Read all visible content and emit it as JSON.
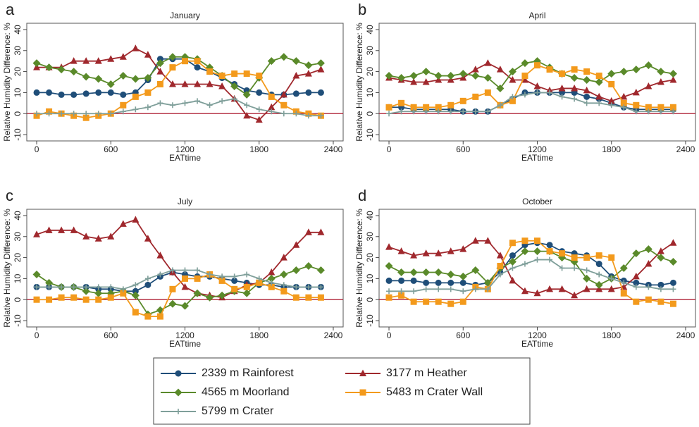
{
  "chart_data": [
    {
      "type": "line",
      "panel_label": "a",
      "title": "January",
      "xlabel": "EATtime",
      "ylabel": "Relative Humidity Difference: %",
      "x": [
        0,
        100,
        200,
        300,
        400,
        500,
        600,
        700,
        800,
        900,
        1000,
        1100,
        1200,
        1300,
        1400,
        1500,
        1600,
        1700,
        1800,
        1900,
        2000,
        2100,
        2200,
        2300
      ],
      "xlim": [
        -80,
        2480
      ],
      "xticks": [
        0,
        600,
        1200,
        1800,
        2400
      ],
      "ylim": [
        -13,
        43
      ],
      "yticks": [
        -10,
        0,
        10,
        20,
        30,
        40
      ],
      "hline": 0,
      "series": [
        {
          "name": "2339 m Rainforest",
          "color": "#1f4e79",
          "marker": "circle",
          "values": [
            10,
            10,
            9,
            9,
            9.5,
            10,
            10,
            9,
            10,
            16,
            26,
            26,
            26,
            22,
            20,
            17,
            14,
            11,
            10,
            9,
            9,
            9.5,
            10,
            10
          ]
        },
        {
          "name": "3177 m Heather",
          "color": "#a0282d",
          "marker": "triangle",
          "values": [
            22,
            22,
            22,
            25,
            25,
            25,
            26,
            27,
            31,
            28,
            20,
            14,
            14,
            14,
            14,
            13,
            7,
            -1,
            -3,
            3,
            9,
            18,
            19,
            21
          ]
        },
        {
          "name": "4565 m Moorland",
          "color": "#5a8a2a",
          "marker": "diamond",
          "values": [
            24,
            22,
            21,
            20,
            17.5,
            16.5,
            14,
            18,
            16.5,
            17,
            24,
            27,
            27,
            26,
            22,
            18,
            13,
            9,
            17,
            25,
            27,
            25,
            23,
            24
          ]
        },
        {
          "name": "5483 m Crater Wall",
          "color": "#f39a1c",
          "marker": "square",
          "values": [
            -1,
            1,
            0,
            -1,
            -2,
            -1,
            0,
            4,
            8,
            10,
            14,
            22,
            25,
            25,
            20,
            18,
            19,
            19,
            18,
            8,
            4,
            1,
            0,
            -1
          ]
        },
        {
          "name": "5799 m Crater",
          "color": "#7f9f9a",
          "marker": "plus",
          "values": [
            0,
            0,
            0,
            0,
            0,
            0,
            0,
            1,
            2,
            3,
            5,
            4,
            5,
            6,
            4,
            6,
            7,
            4,
            2,
            1,
            0,
            0,
            -1,
            -1
          ]
        }
      ]
    },
    {
      "type": "line",
      "panel_label": "b",
      "title": "April",
      "xlabel": "EATtime",
      "ylabel": "Relative Humidity Difference: %",
      "x": [
        0,
        100,
        200,
        300,
        400,
        500,
        600,
        700,
        800,
        900,
        1000,
        1100,
        1200,
        1300,
        1400,
        1500,
        1600,
        1700,
        1800,
        1900,
        2000,
        2100,
        2200,
        2300
      ],
      "xlim": [
        -80,
        2480
      ],
      "xticks": [
        0,
        600,
        1200,
        1800,
        2400
      ],
      "ylim": [
        -13,
        43
      ],
      "yticks": [
        -10,
        0,
        10,
        20,
        30,
        40
      ],
      "hline": 0,
      "series": [
        {
          "name": "2339 m Rainforest",
          "color": "#1f4e79",
          "marker": "circle",
          "values": [
            3,
            3,
            2,
            2,
            2,
            2,
            1,
            1,
            1,
            4,
            7,
            10,
            10,
            10,
            10,
            10,
            8,
            7,
            5,
            3,
            2,
            2,
            2,
            2
          ]
        },
        {
          "name": "3177 m Heather",
          "color": "#a0282d",
          "marker": "triangle",
          "values": [
            17,
            16,
            15,
            15,
            16,
            16,
            17,
            21,
            24,
            21,
            16,
            16,
            13,
            11,
            12,
            12,
            11,
            8,
            6,
            8,
            10,
            13,
            15,
            16
          ]
        },
        {
          "name": "4565 m Moorland",
          "color": "#5a8a2a",
          "marker": "diamond",
          "values": [
            18,
            17,
            18,
            20,
            18,
            18,
            19,
            18,
            17,
            12,
            20,
            24,
            25,
            22,
            19,
            17,
            16,
            15,
            19,
            20,
            21,
            23,
            20,
            19
          ]
        },
        {
          "name": "5483 m Crater Wall",
          "color": "#f39a1c",
          "marker": "square",
          "values": [
            3,
            5,
            3,
            3,
            3,
            4,
            6,
            8,
            10,
            4,
            6,
            18,
            23,
            21,
            19,
            21,
            20,
            18,
            14,
            5,
            4,
            3,
            3,
            3
          ]
        },
        {
          "name": "5799 m Crater",
          "color": "#7f9f9a",
          "marker": "plus",
          "values": [
            0,
            1,
            1,
            1,
            1,
            1,
            1,
            1,
            1,
            4,
            8,
            9,
            10,
            10,
            8,
            7,
            5,
            5,
            4,
            3,
            1,
            1,
            1,
            1
          ]
        }
      ]
    },
    {
      "type": "line",
      "panel_label": "c",
      "title": "July",
      "xlabel": "EATtime",
      "ylabel": "Relative Humidity Difference: %",
      "x": [
        0,
        100,
        200,
        300,
        400,
        500,
        600,
        700,
        800,
        900,
        1000,
        1100,
        1200,
        1300,
        1400,
        1500,
        1600,
        1700,
        1800,
        1900,
        2000,
        2100,
        2200,
        2300
      ],
      "xlim": [
        -80,
        2480
      ],
      "xticks": [
        0,
        600,
        1200,
        1800,
        2400
      ],
      "ylim": [
        -13,
        43
      ],
      "yticks": [
        -10,
        0,
        10,
        20,
        30,
        40
      ],
      "hline": 0,
      "series": [
        {
          "name": "2339 m Rainforest",
          "color": "#1f4e79",
          "marker": "circle",
          "values": [
            6,
            6,
            6,
            6,
            6,
            5,
            5,
            4,
            4,
            7,
            11,
            13,
            12,
            11,
            11,
            10,
            9,
            8,
            7,
            7,
            6,
            6,
            6,
            6
          ]
        },
        {
          "name": "3177 m Heather",
          "color": "#a0282d",
          "marker": "triangle",
          "values": [
            31,
            33,
            33,
            33,
            30,
            29,
            30,
            36,
            38,
            29,
            21,
            13,
            6,
            3,
            2,
            1,
            4,
            7,
            8,
            13,
            20,
            26,
            32,
            32
          ]
        },
        {
          "name": "4565 m Moorland",
          "color": "#5a8a2a",
          "marker": "diamond",
          "values": [
            12,
            8,
            6,
            6,
            4,
            3,
            3,
            4,
            2,
            -7,
            -5,
            -2,
            -3,
            3,
            1,
            2,
            4,
            3,
            8,
            10,
            12,
            14,
            16,
            14
          ]
        },
        {
          "name": "5483 m Crater Wall",
          "color": "#f39a1c",
          "marker": "square",
          "values": [
            0,
            0,
            1,
            1,
            0,
            0,
            1,
            3,
            -6,
            -8,
            -8,
            5,
            10,
            10,
            12,
            9,
            5,
            6,
            8,
            6,
            4,
            1,
            1,
            1
          ]
        },
        {
          "name": "5799 m Crater",
          "color": "#7f9f9a",
          "marker": "plus",
          "values": [
            6,
            6,
            6,
            6,
            6,
            6,
            6,
            5,
            7,
            10,
            12,
            14,
            14,
            14,
            12,
            11,
            11,
            12,
            10,
            8,
            7,
            6,
            6,
            6
          ]
        }
      ]
    },
    {
      "type": "line",
      "panel_label": "d",
      "title": "October",
      "xlabel": "EATtime",
      "ylabel": "Relative Humidity Difference: %",
      "x": [
        0,
        100,
        200,
        300,
        400,
        500,
        600,
        700,
        800,
        900,
        1000,
        1100,
        1200,
        1300,
        1400,
        1500,
        1600,
        1700,
        1800,
        1900,
        2000,
        2100,
        2200,
        2300
      ],
      "xlim": [
        -80,
        2480
      ],
      "xticks": [
        0,
        600,
        1200,
        1800,
        2400
      ],
      "ylim": [
        -13,
        43
      ],
      "yticks": [
        -10,
        0,
        10,
        20,
        30,
        40
      ],
      "hline": 0,
      "series": [
        {
          "name": "2339 m Rainforest",
          "color": "#1f4e79",
          "marker": "circle",
          "values": [
            9,
            9,
            9,
            8,
            8,
            8,
            8,
            7,
            8,
            13,
            21,
            26,
            27,
            26,
            23,
            22,
            21,
            17,
            11,
            9,
            8,
            7,
            7,
            8
          ]
        },
        {
          "name": "3177 m Heather",
          "color": "#a0282d",
          "marker": "triangle",
          "values": [
            25,
            23,
            21,
            22,
            22,
            23,
            24,
            28,
            28,
            21,
            9,
            4,
            3,
            5,
            5,
            2,
            5,
            5,
            5,
            6,
            11,
            17,
            23,
            27
          ]
        },
        {
          "name": "4565 m Moorland",
          "color": "#5a8a2a",
          "marker": "diamond",
          "values": [
            16,
            13,
            13,
            13,
            13,
            12,
            11,
            14,
            8,
            15,
            18,
            23,
            23,
            23,
            20,
            18,
            10,
            7,
            10,
            15,
            22,
            24,
            20,
            18
          ]
        },
        {
          "name": "5483 m Crater Wall",
          "color": "#f39a1c",
          "marker": "square",
          "values": [
            1,
            2,
            -1,
            -1,
            -1,
            -2,
            -1,
            6,
            5,
            16,
            27,
            28,
            28,
            23,
            22,
            20,
            20,
            21,
            20,
            3,
            -1,
            0,
            -1,
            -2
          ]
        },
        {
          "name": "5799 m Crater",
          "color": "#7f9f9a",
          "marker": "plus",
          "values": [
            4,
            4,
            4,
            5,
            5,
            5,
            4,
            5,
            5,
            12,
            15,
            17,
            19,
            19,
            15,
            15,
            14,
            12,
            10,
            8,
            6,
            6,
            5,
            5
          ]
        }
      ]
    }
  ]
}
